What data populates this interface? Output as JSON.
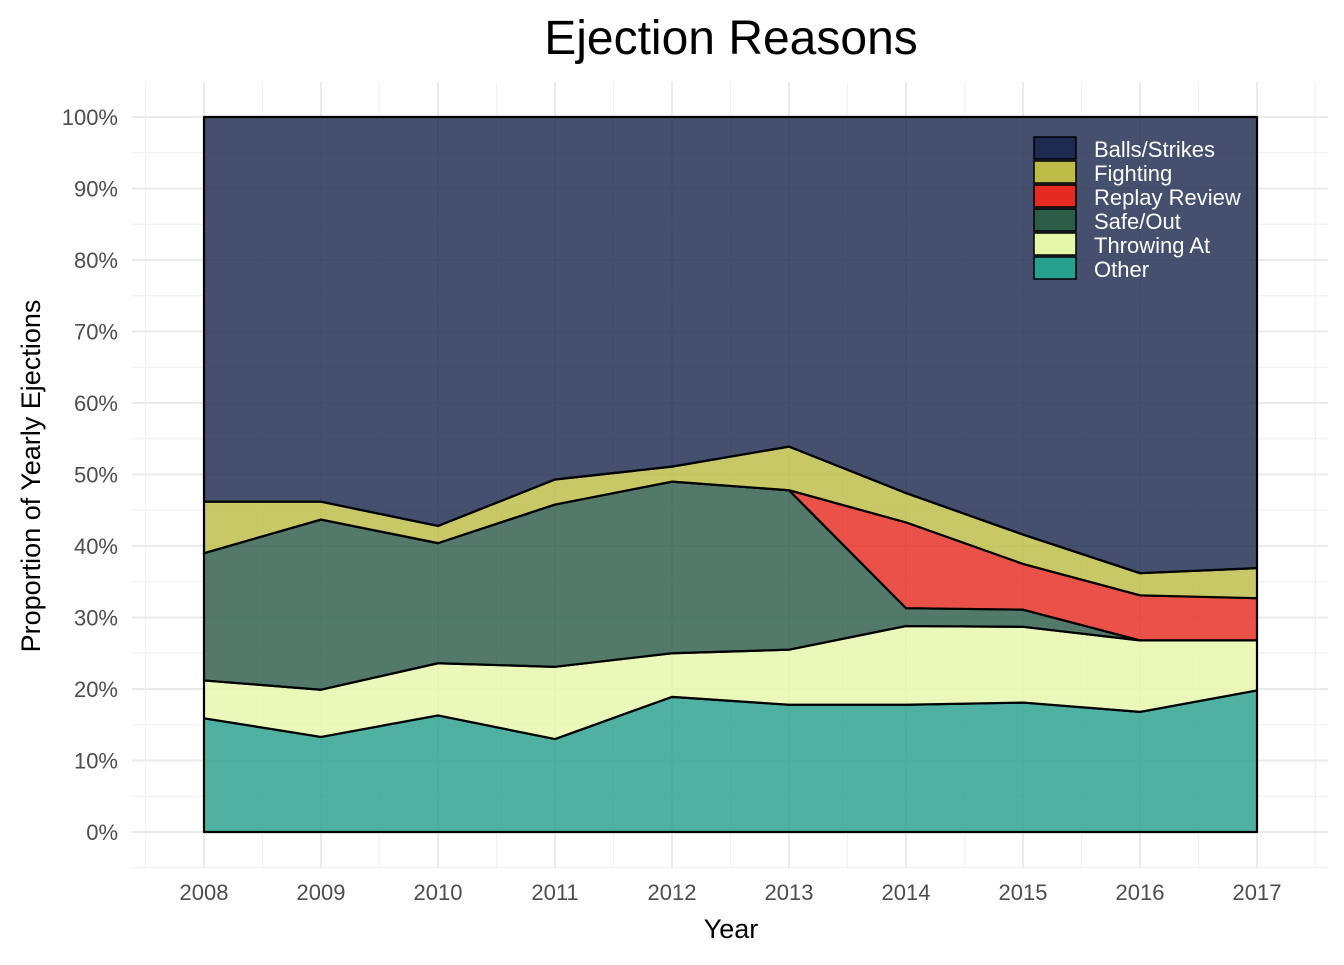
{
  "chart_data": {
    "type": "area",
    "stacked": true,
    "normalized": true,
    "title": "Ejection Reasons",
    "xlabel": "Year",
    "ylabel": "Proportion of Yearly Ejections",
    "x": [
      2008,
      2009,
      2010,
      2011,
      2012,
      2013,
      2014,
      2015,
      2016,
      2017
    ],
    "x_tick_labels": [
      "2008",
      "2009",
      "2010",
      "2011",
      "2012",
      "2013",
      "2014",
      "2015",
      "2016",
      "2017"
    ],
    "ylim": [
      0,
      1
    ],
    "y_tick_labels": [
      "0%",
      "10%",
      "20%",
      "30%",
      "40%",
      "50%",
      "60%",
      "70%",
      "80%",
      "90%",
      "100%"
    ],
    "grid": true,
    "legend_position": "top-right",
    "series": [
      {
        "name": "Balls/Strikes",
        "color": "#1b2a4e",
        "values": [
          0.538,
          0.538,
          0.572,
          0.507,
          0.489,
          0.461,
          0.526,
          0.584,
          0.638,
          0.631
        ]
      },
      {
        "name": "Fighting",
        "color": "#bcbc46",
        "values": [
          0.072,
          0.025,
          0.024,
          0.035,
          0.021,
          0.061,
          0.041,
          0.041,
          0.031,
          0.042
        ]
      },
      {
        "name": "Replay Review",
        "color": "#e52b21",
        "values": [
          0.0,
          0.0,
          0.0,
          0.0,
          0.0,
          0.0,
          0.12,
          0.064,
          0.063,
          0.059
        ]
      },
      {
        "name": "Safe/Out",
        "color": "#2c5c48",
        "values": [
          0.178,
          0.238,
          0.168,
          0.227,
          0.24,
          0.223,
          0.025,
          0.024,
          0.0,
          0.0
        ]
      },
      {
        "name": "Throwing At",
        "color": "#e5f8aa",
        "values": [
          0.053,
          0.066,
          0.073,
          0.101,
          0.061,
          0.077,
          0.11,
          0.106,
          0.1,
          0.07
        ]
      },
      {
        "name": "Other",
        "color": "#27a08e",
        "values": [
          0.159,
          0.133,
          0.163,
          0.13,
          0.189,
          0.178,
          0.178,
          0.181,
          0.168,
          0.198
        ]
      }
    ]
  }
}
